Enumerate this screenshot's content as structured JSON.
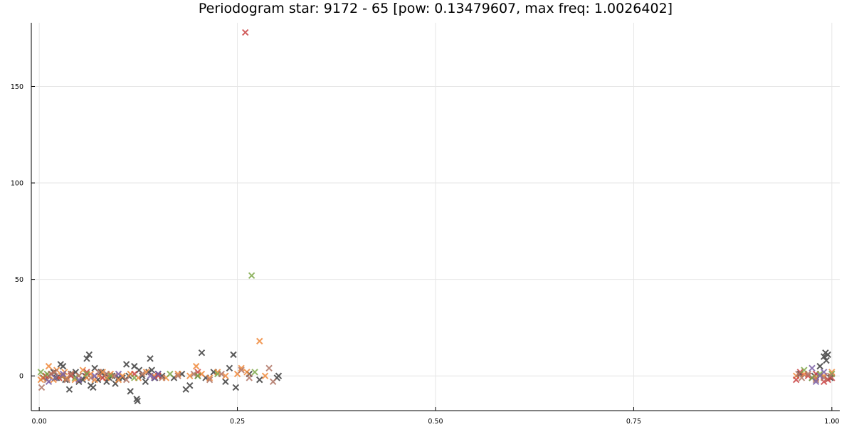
{
  "chart_data": {
    "type": "scatter",
    "title": "Periodogram star: 9172 - 65 [pow: 0.13479607, max freq: 1.0026402]",
    "xlabel": "",
    "ylabel": "",
    "xlim": [
      -0.01,
      1.01
    ],
    "ylim": [
      -18,
      183
    ],
    "xticks": [
      0.0,
      0.25,
      0.5,
      0.75,
      1.0
    ],
    "xtick_labels": [
      "0.00",
      "0.25",
      "0.50",
      "0.75",
      "1.00"
    ],
    "yticks": [
      0,
      50,
      100,
      150
    ],
    "ytick_labels": [
      "0",
      "50",
      "100",
      "150"
    ],
    "grid": true,
    "marker": "x",
    "series": [
      {
        "color": "#3d3d3d",
        "points": [
          [
            0.005,
            -1
          ],
          [
            0.012,
            0
          ],
          [
            0.018,
            2
          ],
          [
            0.022,
            -1
          ],
          [
            0.027,
            6
          ],
          [
            0.03,
            5
          ],
          [
            0.033,
            -2
          ],
          [
            0.038,
            -7
          ],
          [
            0.042,
            1
          ],
          [
            0.046,
            2
          ],
          [
            0.05,
            -3
          ],
          [
            0.055,
            -2
          ],
          [
            0.058,
            0
          ],
          [
            0.06,
            9
          ],
          [
            0.063,
            11
          ],
          [
            0.065,
            -5
          ],
          [
            0.068,
            -6
          ],
          [
            0.07,
            4
          ],
          [
            0.074,
            -2
          ],
          [
            0.078,
            2
          ],
          [
            0.082,
            0
          ],
          [
            0.085,
            -3
          ],
          [
            0.088,
            -1
          ],
          [
            0.092,
            0
          ],
          [
            0.096,
            -4
          ],
          [
            0.1,
            -1
          ],
          [
            0.105,
            -1
          ],
          [
            0.11,
            6
          ],
          [
            0.113,
            0
          ],
          [
            0.115,
            -8
          ],
          [
            0.12,
            5
          ],
          [
            0.123,
            -12
          ],
          [
            0.124,
            -13
          ],
          [
            0.126,
            3
          ],
          [
            0.13,
            0
          ],
          [
            0.134,
            -3
          ],
          [
            0.138,
            2
          ],
          [
            0.14,
            9
          ],
          [
            0.142,
            3
          ],
          [
            0.146,
            -1
          ],
          [
            0.15,
            1
          ],
          [
            0.155,
            0
          ],
          [
            0.17,
            -1
          ],
          [
            0.18,
            1
          ],
          [
            0.185,
            -7
          ],
          [
            0.19,
            -5
          ],
          [
            0.2,
            0
          ],
          [
            0.205,
            12
          ],
          [
            0.21,
            -1
          ],
          [
            0.22,
            2
          ],
          [
            0.235,
            -3
          ],
          [
            0.24,
            4
          ],
          [
            0.245,
            11
          ],
          [
            0.248,
            -6
          ],
          [
            0.265,
            1
          ],
          [
            0.278,
            -2
          ],
          [
            0.3,
            -1
          ],
          [
            0.302,
            0
          ],
          [
            0.96,
            1
          ],
          [
            0.975,
            -1
          ],
          [
            0.978,
            0
          ],
          [
            0.985,
            5
          ],
          [
            0.99,
            10
          ],
          [
            0.992,
            12
          ],
          [
            0.993,
            8
          ],
          [
            0.995,
            11
          ],
          [
            0.998,
            -1
          ]
        ]
      },
      {
        "color": "#f08a3c",
        "points": [
          [
            0.002,
            -2
          ],
          [
            0.004,
            -1
          ],
          [
            0.008,
            0
          ],
          [
            0.012,
            5
          ],
          [
            0.015,
            1
          ],
          [
            0.018,
            -2
          ],
          [
            0.022,
            3
          ],
          [
            0.025,
            -1
          ],
          [
            0.028,
            0
          ],
          [
            0.032,
            2
          ],
          [
            0.035,
            -1
          ],
          [
            0.04,
            1
          ],
          [
            0.045,
            -2
          ],
          [
            0.05,
            0
          ],
          [
            0.055,
            3
          ],
          [
            0.06,
            -1
          ],
          [
            0.065,
            1
          ],
          [
            0.07,
            -2
          ],
          [
            0.075,
            0
          ],
          [
            0.08,
            2
          ],
          [
            0.085,
            -1
          ],
          [
            0.09,
            1
          ],
          [
            0.1,
            -2
          ],
          [
            0.105,
            0
          ],
          [
            0.115,
            1
          ],
          [
            0.125,
            -1
          ],
          [
            0.135,
            2
          ],
          [
            0.145,
            0
          ],
          [
            0.16,
            -1
          ],
          [
            0.175,
            1
          ],
          [
            0.19,
            0
          ],
          [
            0.198,
            5
          ],
          [
            0.205,
            1
          ],
          [
            0.215,
            -1
          ],
          [
            0.225,
            2
          ],
          [
            0.235,
            0
          ],
          [
            0.25,
            1
          ],
          [
            0.255,
            4
          ],
          [
            0.262,
            2
          ],
          [
            0.278,
            18
          ],
          [
            0.285,
            0
          ],
          [
            0.955,
            0
          ],
          [
            0.965,
            1
          ],
          [
            0.98,
            -1
          ],
          [
            0.99,
            0
          ],
          [
            1.0,
            2
          ]
        ]
      },
      {
        "color": "#c94444",
        "points": [
          [
            0.008,
            0
          ],
          [
            0.015,
            1
          ],
          [
            0.025,
            -1
          ],
          [
            0.04,
            0
          ],
          [
            0.06,
            2
          ],
          [
            0.08,
            -1
          ],
          [
            0.12,
            1
          ],
          [
            0.15,
            0
          ],
          [
            0.2,
            2
          ],
          [
            0.26,
            178
          ],
          [
            0.955,
            -2
          ],
          [
            0.96,
            2
          ],
          [
            0.97,
            0
          ],
          [
            0.98,
            1
          ],
          [
            0.99,
            -3
          ],
          [
            0.995,
            -2
          ],
          [
            1.0,
            -1
          ]
        ]
      },
      {
        "color": "#7ea94a",
        "points": [
          [
            0.002,
            2
          ],
          [
            0.01,
            1
          ],
          [
            0.02,
            -1
          ],
          [
            0.03,
            0
          ],
          [
            0.045,
            -1
          ],
          [
            0.06,
            1
          ],
          [
            0.09,
            0
          ],
          [
            0.12,
            -1
          ],
          [
            0.165,
            1
          ],
          [
            0.2,
            0
          ],
          [
            0.225,
            1
          ],
          [
            0.268,
            52
          ],
          [
            0.272,
            2
          ],
          [
            0.965,
            3
          ],
          [
            0.975,
            -1
          ],
          [
            0.985,
            1
          ],
          [
            1.0,
            1
          ]
        ]
      },
      {
        "color": "#b07565",
        "points": [
          [
            0.003,
            -6
          ],
          [
            0.01,
            -2
          ],
          [
            0.015,
            1
          ],
          [
            0.02,
            2
          ],
          [
            0.03,
            0
          ],
          [
            0.035,
            -2
          ],
          [
            0.04,
            1
          ],
          [
            0.05,
            0
          ],
          [
            0.065,
            -1
          ],
          [
            0.075,
            2
          ],
          [
            0.085,
            1
          ],
          [
            0.095,
            0
          ],
          [
            0.11,
            -2
          ],
          [
            0.13,
            1
          ],
          [
            0.155,
            -1
          ],
          [
            0.175,
            0
          ],
          [
            0.195,
            1
          ],
          [
            0.215,
            -2
          ],
          [
            0.23,
            1
          ],
          [
            0.255,
            3
          ],
          [
            0.265,
            -1
          ],
          [
            0.29,
            4
          ],
          [
            0.295,
            -3
          ],
          [
            0.958,
            1
          ],
          [
            0.962,
            -1
          ],
          [
            0.97,
            1
          ],
          [
            0.98,
            -2
          ],
          [
            0.99,
            -1
          ],
          [
            0.998,
            0
          ]
        ]
      },
      {
        "color": "#7a5fa6",
        "points": [
          [
            0.012,
            -3
          ],
          [
            0.02,
            -1
          ],
          [
            0.03,
            1
          ],
          [
            0.05,
            -2
          ],
          [
            0.07,
            0
          ],
          [
            0.1,
            1
          ],
          [
            0.14,
            0
          ],
          [
            0.145,
            -1
          ],
          [
            0.15,
            1
          ],
          [
            0.975,
            4
          ],
          [
            0.98,
            -3
          ],
          [
            0.985,
            0
          ],
          [
            0.99,
            2
          ]
        ]
      }
    ]
  }
}
